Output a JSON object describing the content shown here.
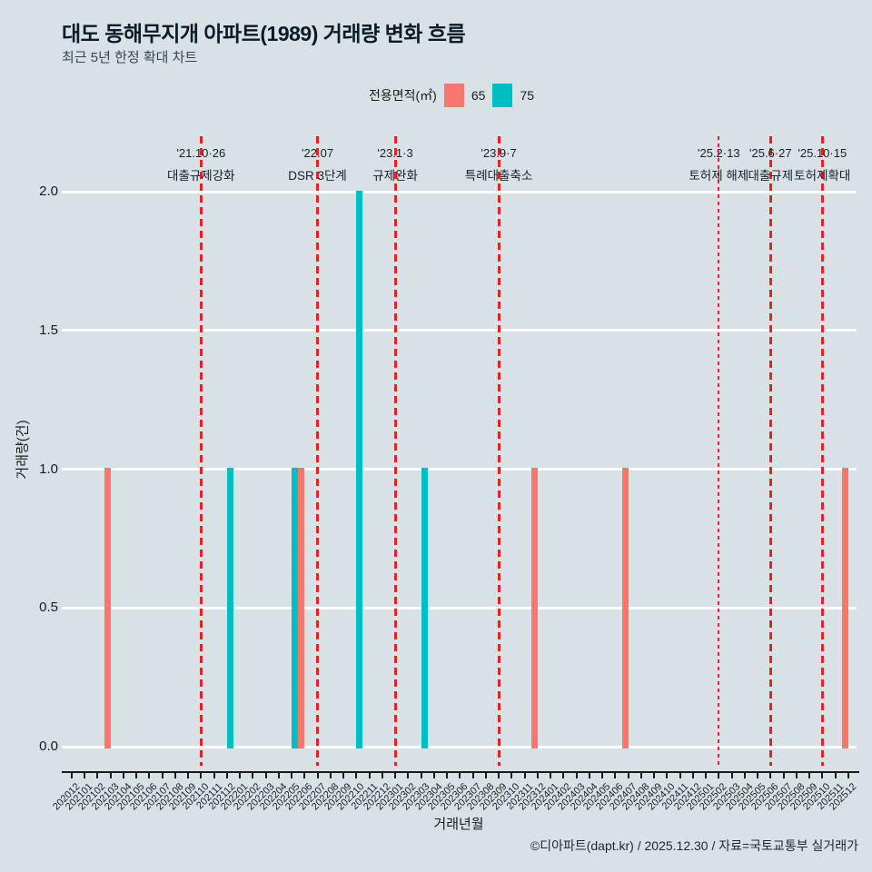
{
  "header": {
    "title": "대도 동해무지개 아파트(1989) 거래량 변화 흐름",
    "subtitle": "최근 5년 한정 확대 차트"
  },
  "legend": {
    "label": "전용면적(㎡)",
    "items": [
      {
        "name": "65",
        "color": "#F8766D"
      },
      {
        "name": "75",
        "color": "#00BFC4"
      }
    ]
  },
  "chart_data": {
    "type": "bar",
    "title": "대도 동해무지개 아파트(1989) 거래량 변화 흐름",
    "xlabel": "거래년월",
    "ylabel": "거래량(건)",
    "ylim": [
      0,
      2
    ],
    "yticks": [
      "0.0",
      "0.5",
      "1.0",
      "1.5",
      "2.0"
    ],
    "grid": "horizontal-white",
    "legend_position": "top",
    "background": "#d8e2e6",
    "event_line_color": "#e82222",
    "categories": [
      "202012",
      "202101",
      "202102",
      "202103",
      "202104",
      "202105",
      "202106",
      "202107",
      "202108",
      "202109",
      "202110",
      "202111",
      "202112",
      "202201",
      "202202",
      "202203",
      "202204",
      "202205",
      "202206",
      "202207",
      "202208",
      "202209",
      "202210",
      "202211",
      "202212",
      "202301",
      "202302",
      "202303",
      "202304",
      "202305",
      "202306",
      "202307",
      "202308",
      "202309",
      "202310",
      "202311",
      "202312",
      "202401",
      "202402",
      "202403",
      "202404",
      "202405",
      "202406",
      "202407",
      "202408",
      "202409",
      "202410",
      "202411",
      "202412",
      "202501",
      "202502",
      "202503",
      "202504",
      "202505",
      "202506",
      "202507",
      "202508",
      "202509",
      "202510",
      "202511",
      "202512"
    ],
    "series": [
      {
        "name": "65",
        "color": "#F8766D",
        "points": [
          {
            "x": "202103",
            "y": 1
          },
          {
            "x": "202206",
            "y": 1
          },
          {
            "x": "202312",
            "y": 1
          },
          {
            "x": "202407",
            "y": 1
          },
          {
            "x": "202512",
            "y": 1
          }
        ]
      },
      {
        "name": "75",
        "color": "#00BFC4",
        "points": [
          {
            "x": "202112",
            "y": 1
          },
          {
            "x": "202205",
            "y": 1
          },
          {
            "x": "202210",
            "y": 2
          },
          {
            "x": "202303",
            "y": 1
          }
        ]
      }
    ],
    "annotations": [
      {
        "x": "202110",
        "date": "'21.10·26",
        "label": "대출규제강화",
        "thin": false
      },
      {
        "x": "202207",
        "date": "'22.07",
        "label": "DSR 3단계",
        "thin": false
      },
      {
        "x": "202301",
        "date": "'23.1·3",
        "label": "규제완화",
        "thin": false
      },
      {
        "x": "202309",
        "date": "'23.9·7",
        "label": "특례대출축소",
        "thin": false
      },
      {
        "x": "202502",
        "date": "'25.2·13",
        "label": "토허제 해제",
        "thin": true
      },
      {
        "x": "202506",
        "date": "'25.6·27",
        "label": "대출규제",
        "thin": false
      },
      {
        "x": "202510",
        "date": "'25.10·15",
        "label": "토허제확대",
        "thin": false
      }
    ]
  },
  "footer": {
    "credit": "©디아파트(dapt.kr) / 2025.12.30 / 자료=국토교통부 실거래가"
  }
}
